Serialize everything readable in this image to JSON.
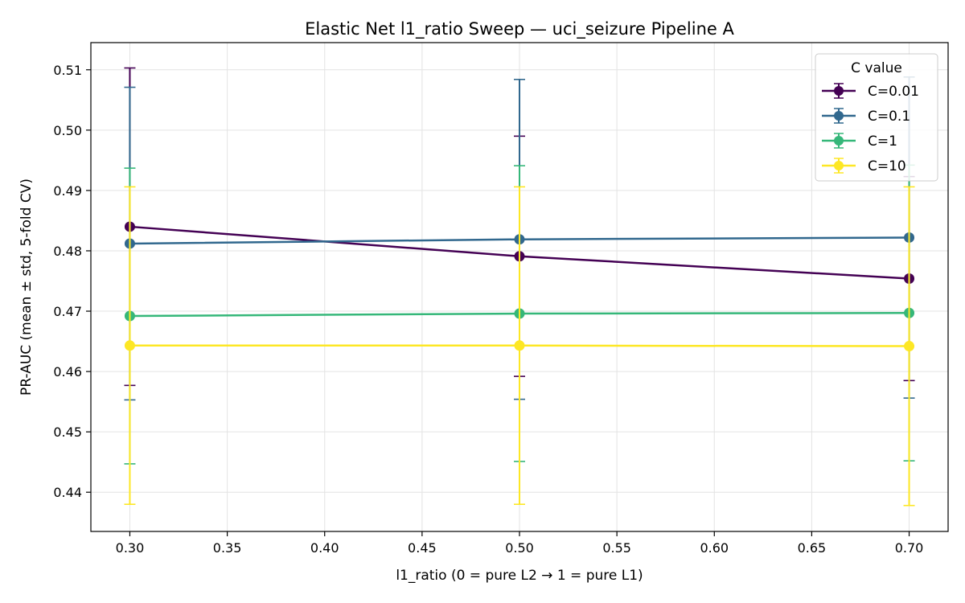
{
  "chart_data": {
    "type": "line",
    "title": "Elastic Net l1_ratio Sweep — uci_seizure Pipeline A",
    "xlabel": "l1_ratio  (0 = pure L2 → 1 = pure L1)",
    "ylabel": "PR-AUC (mean ± std, 5-fold CV)",
    "xlim": [
      0.28,
      0.72
    ],
    "ylim": [
      0.4335,
      0.5145
    ],
    "xticks": [
      0.3,
      0.35,
      0.4,
      0.45,
      0.5,
      0.55,
      0.6,
      0.65,
      0.7
    ],
    "yticks": [
      0.44,
      0.45,
      0.46,
      0.47,
      0.48,
      0.49,
      0.5,
      0.51
    ],
    "grid": true,
    "legend_title": "C value",
    "legend_position": "top-right",
    "x": [
      0.3,
      0.5,
      0.7
    ],
    "series": [
      {
        "name": "C=0.01",
        "color": "#440154",
        "values": [
          0.484,
          0.4791,
          0.4754
        ],
        "std": [
          0.0263,
          0.0199,
          0.0169
        ]
      },
      {
        "name": "C=0.1",
        "color": "#31688e",
        "values": [
          0.4812,
          0.4819,
          0.4822
        ],
        "std": [
          0.0259,
          0.0265,
          0.0266
        ]
      },
      {
        "name": "C=1",
        "color": "#35b779",
        "values": [
          0.4692,
          0.4696,
          0.4697
        ],
        "std": [
          0.0245,
          0.0245,
          0.0245
        ]
      },
      {
        "name": "C=10",
        "color": "#fde725",
        "values": [
          0.4643,
          0.4643,
          0.4642
        ],
        "std": [
          0.0263,
          0.0263,
          0.0264
        ]
      }
    ]
  }
}
